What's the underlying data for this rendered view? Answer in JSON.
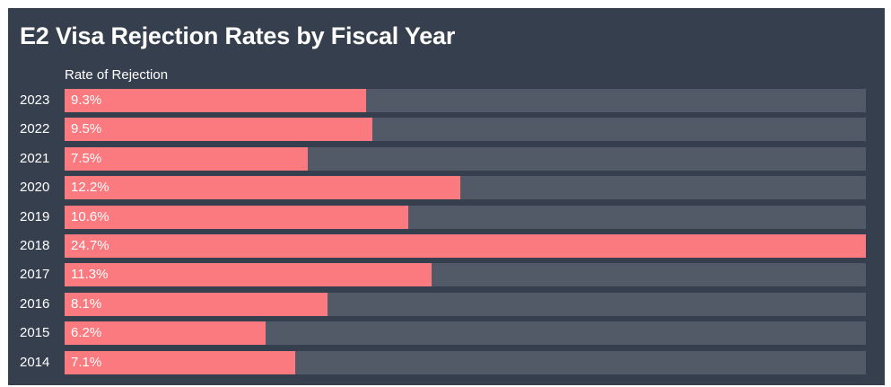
{
  "chart_data": {
    "type": "bar",
    "orientation": "horizontal",
    "title": "E2 Visa Rejection Rates by Fiscal Year",
    "column_label": "Rate of Rejection",
    "categories": [
      "2023",
      "2022",
      "2021",
      "2020",
      "2019",
      "2018",
      "2017",
      "2016",
      "2015",
      "2014"
    ],
    "values": [
      9.3,
      9.5,
      7.5,
      12.2,
      10.6,
      24.7,
      11.3,
      8.1,
      6.2,
      7.1
    ],
    "value_labels": [
      "9.3%",
      "9.5%",
      "7.5%",
      "12.2%",
      "10.6%",
      "24.7%",
      "11.3%",
      "8.1%",
      "6.2%",
      "7.1%"
    ],
    "xlim": [
      0,
      24.7
    ],
    "grid": false,
    "legend": "none",
    "colors": {
      "background": "#363f4e",
      "bar": "#fa7a7f",
      "track": "#525a68",
      "text": "#ffffff"
    }
  }
}
